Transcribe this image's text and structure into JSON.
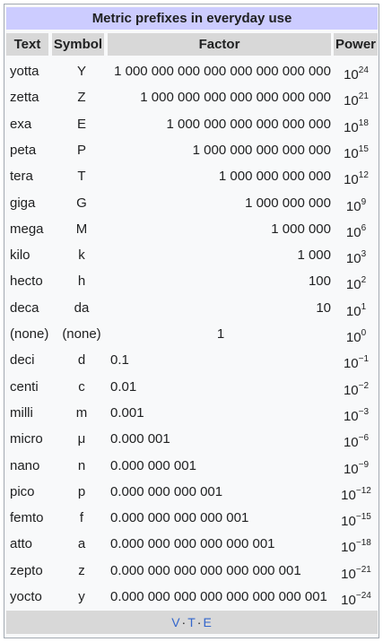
{
  "title": "Metric prefixes in everyday use",
  "headers": {
    "text": "Text",
    "symbol": "Symbol",
    "factor": "Factor",
    "power": "Power"
  },
  "rows": [
    {
      "text": "yotta",
      "symbol": "Y",
      "factor": "1 000 000 000 000 000 000 000 000",
      "align": "right",
      "power_base": "10",
      "power_exp": "24"
    },
    {
      "text": "zetta",
      "symbol": "Z",
      "factor": "1 000 000 000 000 000 000 000",
      "align": "right",
      "power_base": "10",
      "power_exp": "21"
    },
    {
      "text": "exa",
      "symbol": "E",
      "factor": "1 000 000 000 000 000 000",
      "align": "right",
      "power_base": "10",
      "power_exp": "18"
    },
    {
      "text": "peta",
      "symbol": "P",
      "factor": "1 000 000 000 000 000",
      "align": "right",
      "power_base": "10",
      "power_exp": "15"
    },
    {
      "text": "tera",
      "symbol": "T",
      "factor": "1 000 000 000 000",
      "align": "right",
      "power_base": "10",
      "power_exp": "12"
    },
    {
      "text": "giga",
      "symbol": "G",
      "factor": "1 000 000 000",
      "align": "right",
      "power_base": "10",
      "power_exp": "9"
    },
    {
      "text": "mega",
      "symbol": "M",
      "factor": "1 000 000",
      "align": "right",
      "power_base": "10",
      "power_exp": "6"
    },
    {
      "text": "kilo",
      "symbol": "k",
      "factor": "1 000",
      "align": "right",
      "power_base": "10",
      "power_exp": "3"
    },
    {
      "text": "hecto",
      "symbol": "h",
      "factor": "100",
      "align": "right",
      "power_base": "10",
      "power_exp": "2"
    },
    {
      "text": "deca",
      "symbol": "da",
      "factor": "10",
      "align": "right",
      "power_base": "10",
      "power_exp": "1"
    },
    {
      "text": "(none)",
      "symbol": "(none)",
      "factor": "1",
      "align": "center",
      "power_base": "10",
      "power_exp": "0"
    },
    {
      "text": "deci",
      "symbol": "d",
      "factor": "0.1",
      "align": "left",
      "power_base": "10",
      "power_exp": "−1"
    },
    {
      "text": "centi",
      "symbol": "c",
      "factor": "0.01",
      "align": "left",
      "power_base": "10",
      "power_exp": "−2"
    },
    {
      "text": "milli",
      "symbol": "m",
      "factor": "0.001",
      "align": "left",
      "power_base": "10",
      "power_exp": "−3"
    },
    {
      "text": "micro",
      "symbol": "μ",
      "factor": "0.000 001",
      "align": "left",
      "power_base": "10",
      "power_exp": "−6"
    },
    {
      "text": "nano",
      "symbol": "n",
      "factor": "0.000 000 001",
      "align": "left",
      "power_base": "10",
      "power_exp": "−9"
    },
    {
      "text": "pico",
      "symbol": "p",
      "factor": "0.000 000 000 001",
      "align": "left",
      "power_base": "10",
      "power_exp": "−12"
    },
    {
      "text": "femto",
      "symbol": "f",
      "factor": "0.000 000 000 000 001",
      "align": "left",
      "power_base": "10",
      "power_exp": "−15"
    },
    {
      "text": "atto",
      "symbol": "a",
      "factor": "0.000 000 000 000 000 001",
      "align": "left",
      "power_base": "10",
      "power_exp": "−18"
    },
    {
      "text": "zepto",
      "symbol": "z",
      "factor": "0.000 000 000 000 000 000 001",
      "align": "left",
      "power_base": "10",
      "power_exp": "−21"
    },
    {
      "text": "yocto",
      "symbol": "y",
      "factor": "0.000 000 000 000 000 000 000 001",
      "align": "left",
      "power_base": "10",
      "power_exp": "−24"
    }
  ],
  "footer": {
    "view": "V",
    "talk": "T",
    "edit": "E",
    "separator": "·"
  },
  "colors": {
    "title_bg": "#ccccff",
    "header_bg": "#d8d8d8",
    "link": "#3366cc",
    "frame_bg": "#f8f9fa"
  }
}
